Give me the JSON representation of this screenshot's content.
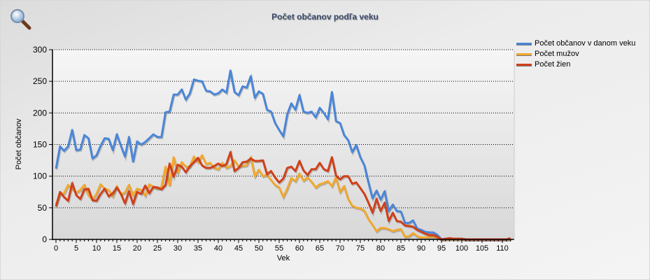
{
  "chart_data": {
    "type": "line",
    "title": "Počet občanov podľa veku",
    "xlabel": "Vek",
    "ylabel": "Počet občanov",
    "xlim": [
      0,
      112
    ],
    "ylim": [
      0,
      300
    ],
    "x_ticks": [
      "0",
      "5",
      "10",
      "15",
      "20",
      "25",
      "30",
      "35",
      "40",
      "45",
      "50",
      "55",
      "60",
      "65",
      "70",
      "75",
      "80",
      "85",
      "90",
      "95",
      "100",
      "105",
      "110"
    ],
    "y_ticks": [
      "0",
      "50",
      "100",
      "150",
      "200",
      "250",
      "300"
    ],
    "grid": "horizontal dotted",
    "legend": "top-right",
    "series": [
      {
        "name": "Počet občanov v danom veku",
        "color": "#4a86d8",
        "values": [
          112,
          147,
          140,
          147,
          173,
          141,
          142,
          165,
          160,
          128,
          133,
          148,
          160,
          159,
          141,
          166,
          148,
          131,
          162,
          123,
          155,
          150,
          154,
          160,
          166,
          162,
          162,
          201,
          202,
          229,
          229,
          237,
          221,
          231,
          253,
          251,
          250,
          235,
          234,
          229,
          231,
          237,
          232,
          267,
          233,
          228,
          242,
          240,
          258,
          224,
          234,
          230,
          205,
          202,
          184,
          173,
          163,
          198,
          215,
          205,
          228,
          202,
          200,
          202,
          193,
          208,
          200,
          190,
          233,
          187,
          184,
          165,
          157,
          138,
          149,
          130,
          117,
          90,
          65,
          77,
          63,
          76,
          45,
          55,
          45,
          44,
          26,
          26,
          30,
          17,
          15,
          12,
          11,
          11,
          7,
          0,
          1,
          1,
          1,
          1,
          1,
          0,
          0,
          0,
          0,
          0,
          0,
          0,
          0,
          0,
          0,
          0,
          1
        ]
      },
      {
        "name": "Počet mužov",
        "color": "#f0a830",
        "values": [
          55,
          72,
          73,
          86,
          80,
          74,
          78,
          86,
          70,
          63,
          72,
          87,
          80,
          78,
          68,
          84,
          71,
          74,
          86,
          70,
          80,
          78,
          69,
          87,
          83,
          80,
          83,
          115,
          85,
          130,
          105,
          122,
          115,
          115,
          131,
          122,
          133,
          119,
          121,
          113,
          111,
          121,
          113,
          116,
          125,
          115,
          116,
          117,
          130,
          100,
          110,
          100,
          102,
          94,
          86,
          82,
          67,
          80,
          97,
          92,
          104,
          93,
          98,
          91,
          82,
          87,
          89,
          92,
          84,
          98,
          75,
          84,
          64,
          53,
          50,
          49,
          45,
          32,
          23,
          13,
          18,
          18,
          16,
          13,
          15,
          16,
          4,
          5,
          10,
          5,
          3,
          3,
          4,
          4,
          3,
          0,
          0,
          0,
          0,
          0,
          0,
          0,
          0,
          0,
          0,
          0,
          0,
          0,
          0,
          0,
          0,
          0,
          0
        ]
      },
      {
        "name": "Počet žien",
        "color": "#d0401a",
        "values": [
          52,
          75,
          67,
          61,
          89,
          70,
          64,
          79,
          80,
          62,
          61,
          72,
          80,
          68,
          73,
          82,
          72,
          57,
          76,
          56,
          75,
          72,
          85,
          73,
          83,
          82,
          79,
          86,
          120,
          99,
          118,
          115,
          106,
          116,
          122,
          129,
          117,
          113,
          113,
          116,
          120,
          116,
          119,
          138,
          108,
          113,
          122,
          123,
          128,
          124,
          124,
          125,
          103,
          108,
          98,
          90,
          96,
          113,
          115,
          108,
          124,
          109,
          102,
          111,
          111,
          121,
          111,
          108,
          130,
          101,
          95,
          100,
          100,
          88,
          90,
          81,
          72,
          58,
          42,
          64,
          45,
          58,
          29,
          42,
          29,
          28,
          22,
          21,
          20,
          15,
          12,
          9,
          7,
          7,
          4,
          0,
          1,
          2,
          1,
          1,
          1,
          0,
          0,
          0,
          0,
          0,
          0,
          0,
          0,
          0,
          0,
          0,
          2
        ]
      }
    ]
  }
}
